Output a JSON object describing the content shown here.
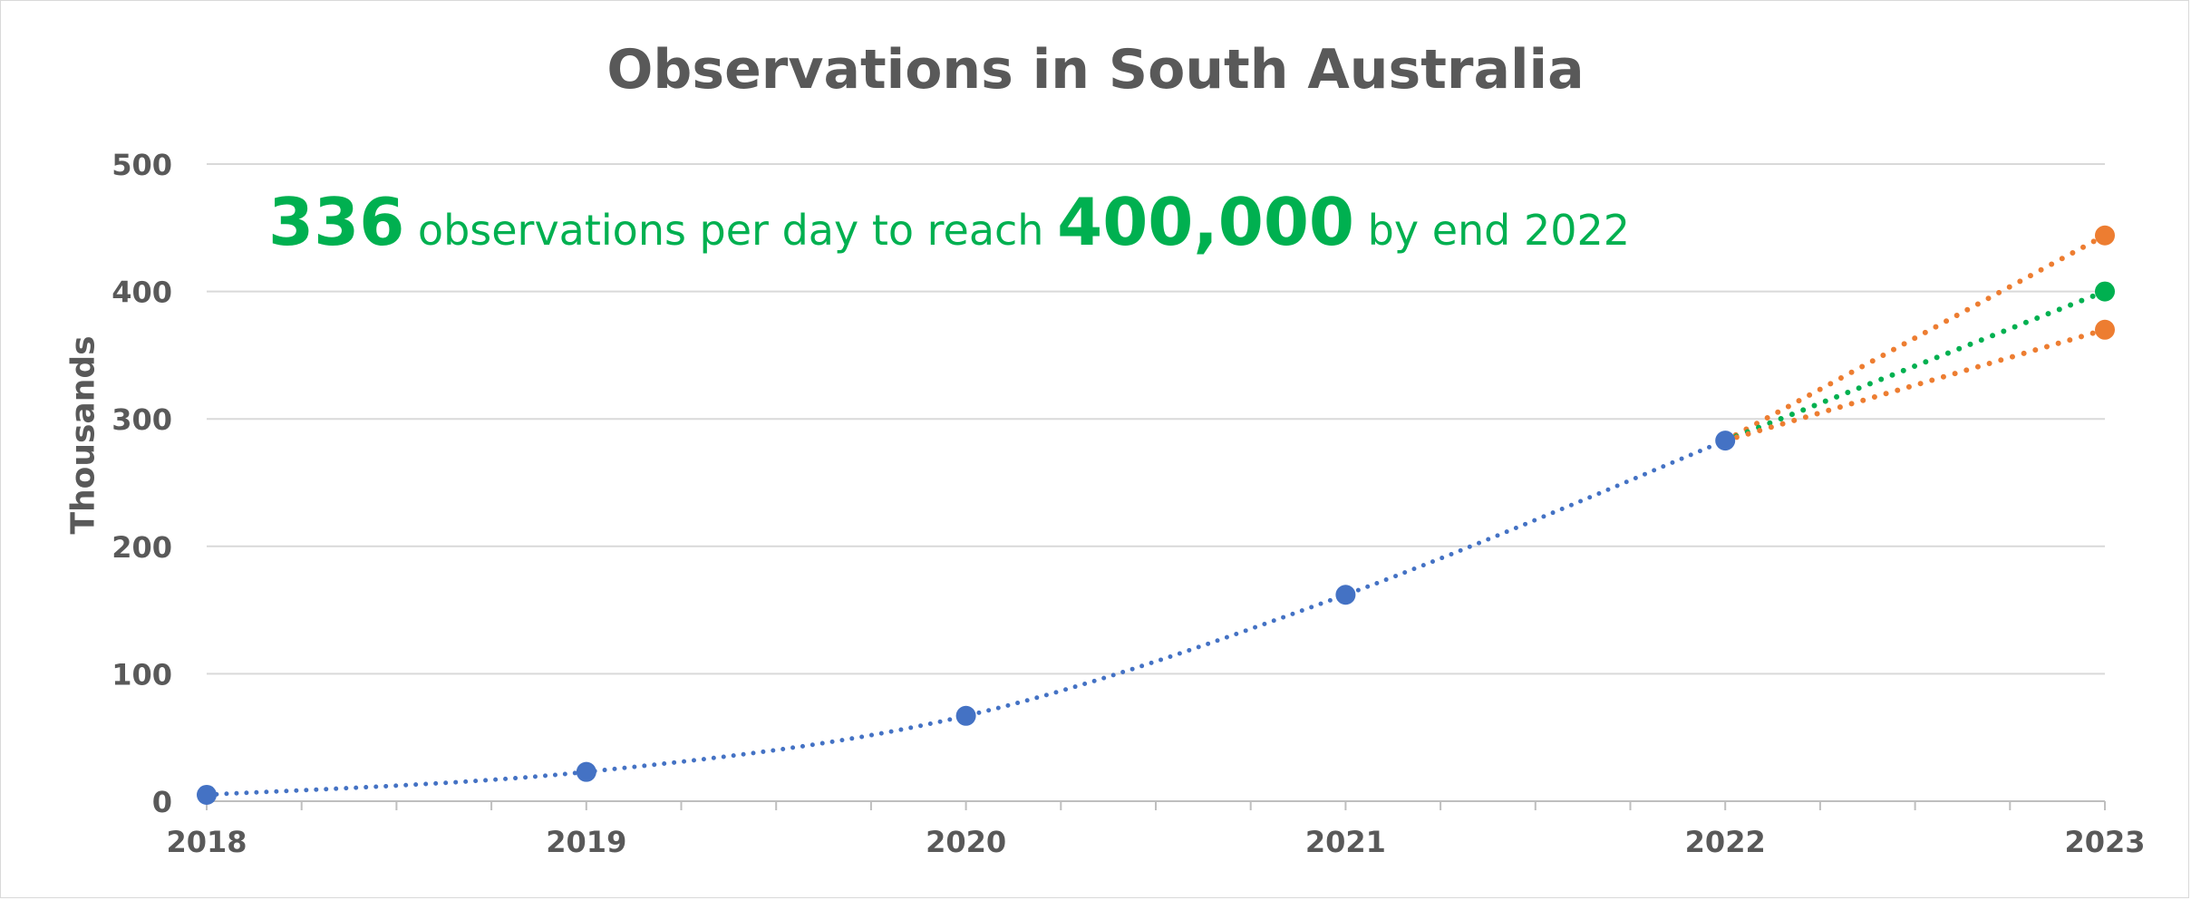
{
  "chart_data": {
    "type": "line",
    "title": "Observations in South Australia",
    "ylabel": "Thousands",
    "xlabel": "",
    "x_ticks": [
      "2018",
      "2019",
      "2020",
      "2021",
      "2022",
      "2023"
    ],
    "y_ticks": [
      "0",
      "100",
      "200",
      "300",
      "400",
      "500"
    ],
    "ylim": [
      0,
      500
    ],
    "xlim": [
      2018,
      2023
    ],
    "grid": true,
    "annotation": {
      "rate": "336",
      "text1": "observations per day to reach",
      "target": "400,000",
      "text2": "by end 2022"
    },
    "series": [
      {
        "color": "#4472c4",
        "style": "dotted",
        "x": [
          2018,
          2019,
          2020,
          2021,
          2022
        ],
        "values": [
          5,
          23,
          67,
          162,
          283
        ]
      },
      {
        "color": "#ed7d31",
        "style": "dotted",
        "x": [
          2022,
          2023
        ],
        "values": [
          283,
          444
        ]
      },
      {
        "color": "#00b050",
        "style": "dotted",
        "x": [
          2022,
          2023
        ],
        "values": [
          283,
          400
        ]
      },
      {
        "color": "#ed7d31",
        "style": "dotted",
        "x": [
          2022,
          2023
        ],
        "values": [
          283,
          370
        ]
      }
    ]
  }
}
